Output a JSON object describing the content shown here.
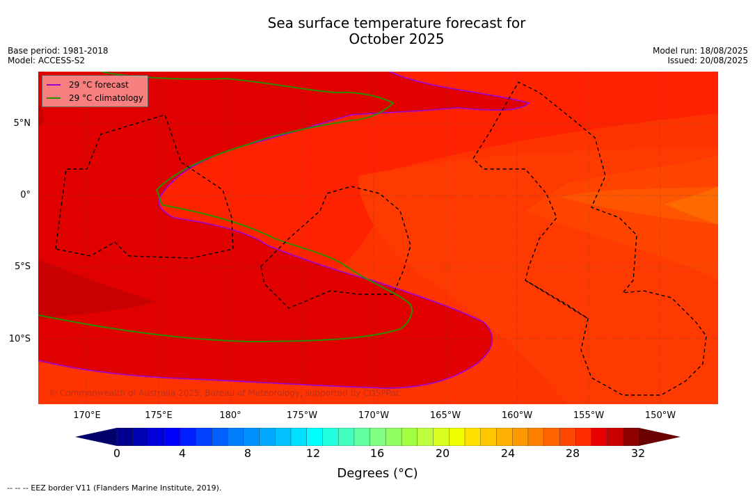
{
  "title": {
    "line1": "Sea surface temperature forecast for",
    "line2": "October 2025"
  },
  "meta": {
    "base_period": "Base period: 1981-2018",
    "model": "Model: ACCESS-S2",
    "model_run": "Model run: 18/08/2025",
    "issued": "Issued: 20/08/2025"
  },
  "legend": {
    "forecast_label": "29 °C  forecast",
    "climatology_label": "29 °C  climatology",
    "forecast_color": "#a000c8",
    "climatology_color": "#2e8b00"
  },
  "axes": {
    "lat_labels": [
      "5°N",
      "0°",
      "5°S",
      "10°S"
    ],
    "lon_labels": [
      "170°E",
      "175°E",
      "180°",
      "175°W",
      "170°W",
      "165°W",
      "160°W",
      "155°W",
      "150°W"
    ]
  },
  "copyright": "© Commonwealth of Australia 2025, Bureau of Meteorology, supported by COSPPac",
  "colorbar": {
    "ticks": [
      "0",
      "4",
      "8",
      "12",
      "16",
      "20",
      "24",
      "28",
      "32"
    ],
    "label": "Degrees (°C)",
    "colors": [
      "#00008f",
      "#0000b4",
      "#0000d8",
      "#0000ff",
      "#0020ff",
      "#0040ff",
      "#0060ff",
      "#0080ff",
      "#0090ff",
      "#00a8ff",
      "#00c0ff",
      "#00e0ff",
      "#00ffff",
      "#20ffe0",
      "#40ffc0",
      "#60ffa0",
      "#80ff80",
      "#90ff60",
      "#a0ff40",
      "#c0ff40",
      "#d8ff20",
      "#f0ff00",
      "#ffe000",
      "#ffc800",
      "#ffb000",
      "#ff9800",
      "#ff8000",
      "#ff6400",
      "#ff4800",
      "#ff2c00",
      "#e80000",
      "#c80000",
      "#8f0000"
    ],
    "low_extend_color": "#00006a",
    "high_extend_color": "#6a0000"
  },
  "footnote": "--  --  -- EEZ border V11 (Flanders Marine Institute, 2019)."
}
